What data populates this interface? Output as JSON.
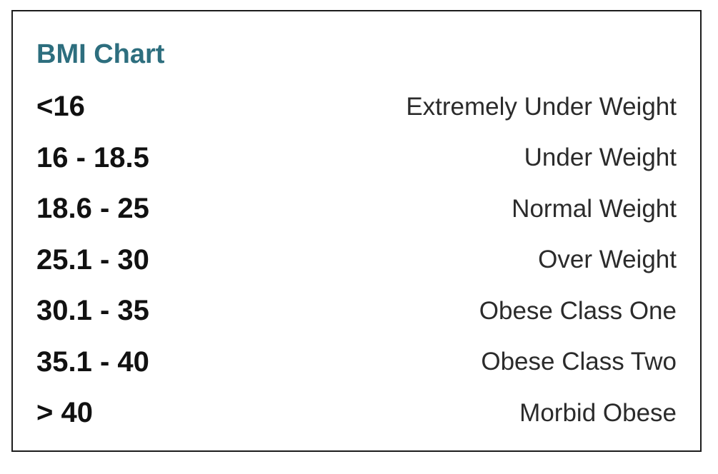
{
  "chart": {
    "title": "BMI Chart",
    "rows": [
      {
        "range": "<16",
        "category": "Extremely Under Weight"
      },
      {
        "range": "16 - 18.5",
        "category": "Under Weight"
      },
      {
        "range": "18.6 - 25",
        "category": "Normal Weight"
      },
      {
        "range": "25.1 - 30",
        "category": "Over Weight"
      },
      {
        "range": "30.1 - 35",
        "category": "Obese Class One"
      },
      {
        "range": "35.1 - 40",
        "category": "Obese Class Two"
      },
      {
        "range": "> 40",
        "category": "Morbid Obese"
      }
    ]
  },
  "colors": {
    "title": "#2d6e7e",
    "range_text": "#111111",
    "category_text": "#2b2b2b",
    "border": "#1c1c1c",
    "background": "#ffffff"
  }
}
